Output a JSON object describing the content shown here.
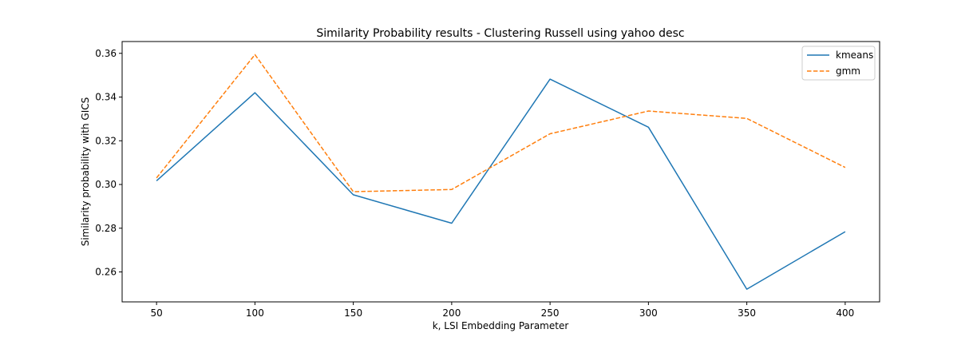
{
  "chart_data": {
    "type": "line",
    "title": "Similarity Probability results - Clustering Russell using yahoo desc",
    "xlabel": "k, LSI Embedding Parameter",
    "ylabel": "Similarity probability with GICS",
    "x": [
      50,
      100,
      150,
      200,
      250,
      300,
      350,
      400
    ],
    "xticks": [
      "50",
      "100",
      "150",
      "200",
      "250",
      "300",
      "350",
      "400"
    ],
    "yticks": [
      "0.26",
      "0.28",
      "0.30",
      "0.32",
      "0.34",
      "0.36"
    ],
    "ytick_values": [
      0.26,
      0.28,
      0.3,
      0.32,
      0.34,
      0.36
    ],
    "xlim": [
      32.5,
      417.5
    ],
    "ylim": [
      0.2463,
      0.3654
    ],
    "grid": false,
    "legend_position": "upper right",
    "series": [
      {
        "name": "kmeans",
        "color": "#1f77b4",
        "dash": "solid",
        "values": [
          0.3017,
          0.342,
          0.2953,
          0.2823,
          0.3482,
          0.3262,
          0.2521,
          0.2784
        ]
      },
      {
        "name": "gmm",
        "color": "#ff7f0e",
        "dash": "dashed",
        "values": [
          0.303,
          0.3594,
          0.2967,
          0.2977,
          0.3232,
          0.3336,
          0.3302,
          0.3078
        ]
      }
    ]
  }
}
